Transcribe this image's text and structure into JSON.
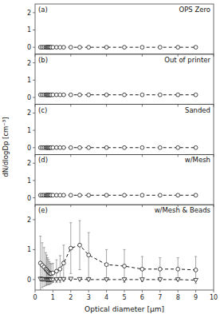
{
  "chart_data": [
    {
      "type": "line",
      "title": "OPS Zero",
      "annotations": [
        "(a)"
      ],
      "x": [
        0.3,
        0.4,
        0.5,
        0.6,
        0.65,
        0.7,
        0.75,
        0.8,
        0.85,
        0.9,
        1.0,
        1.2,
        1.4,
        1.6,
        2.0,
        2.5,
        3.0,
        4.0,
        5.0,
        6.0,
        7.0,
        8.0,
        9.0
      ],
      "series": [
        {
          "color": "black",
          "marker": "circle",
          "line_style": "dashed",
          "values": [
            0,
            0,
            0,
            0,
            0,
            0,
            0,
            0,
            0,
            0,
            0,
            0,
            0,
            0,
            0,
            0,
            0,
            0,
            0,
            0,
            0,
            0,
            0
          ]
        }
      ],
      "xlim": [
        0,
        10
      ],
      "xticks": [
        0,
        2,
        4,
        6,
        8,
        10
      ],
      "ylim": [
        -0.4,
        2.5
      ],
      "yticks": [
        0,
        1,
        2
      ],
      "tick_labels": "y",
      "grid": false
    },
    {
      "type": "line",
      "title": "Out of printer",
      "annotations": [
        "(b)"
      ],
      "x": [
        0.3,
        0.4,
        0.5,
        0.6,
        0.65,
        0.7,
        0.75,
        0.8,
        0.85,
        0.9,
        1.0,
        1.2,
        1.4,
        1.6,
        2.0,
        2.5,
        3.0,
        4.0,
        5.0,
        6.0,
        7.0,
        8.0,
        9.0
      ],
      "series": [
        {
          "color": "black",
          "marker": "circle",
          "line_style": "dashed",
          "values": [
            0.15,
            0.15,
            0.15,
            0.15,
            0.15,
            0.15,
            0.15,
            0.15,
            0.15,
            0.15,
            0.15,
            0.15,
            0.15,
            0.15,
            0.15,
            0.15,
            0.15,
            0.15,
            0.15,
            0.15,
            0.15,
            0.15,
            0.15
          ]
        }
      ],
      "xlim": [
        0,
        10
      ],
      "xticks": [
        0,
        2,
        4,
        6,
        8,
        10
      ],
      "ylim": [
        -0.4,
        2.5
      ],
      "yticks": [
        0,
        1,
        2
      ],
      "tick_labels": "y",
      "grid": false
    },
    {
      "type": "line",
      "title": "Sanded",
      "annotations": [
        "(c)"
      ],
      "y_label": "dN/dlogDp [cm⁻³]",
      "x": [
        0.3,
        0.4,
        0.5,
        0.6,
        0.65,
        0.7,
        0.75,
        0.8,
        0.85,
        0.9,
        1.0,
        1.2,
        1.4,
        1.6,
        2.0,
        2.5,
        3.0,
        4.0,
        5.0,
        6.0,
        7.0,
        8.0,
        9.0
      ],
      "series": [
        {
          "color": "black",
          "marker": "circle",
          "line_style": "dashed",
          "values": [
            0,
            0,
            0,
            0,
            0,
            0,
            0,
            0,
            0,
            0,
            0,
            0,
            0,
            0,
            0,
            0,
            0,
            0,
            0,
            0,
            0,
            0,
            0
          ]
        }
      ],
      "xlim": [
        0,
        10
      ],
      "xticks": [
        0,
        2,
        4,
        6,
        8,
        10
      ],
      "ylim": [
        -0.4,
        2.5
      ],
      "yticks": [
        0,
        1,
        2
      ],
      "tick_labels": "y",
      "grid": false
    },
    {
      "type": "line",
      "title": "w/Mesh",
      "annotations": [
        "(d)"
      ],
      "x": [
        0.3,
        0.4,
        0.5,
        0.6,
        0.65,
        0.7,
        0.75,
        0.8,
        0.85,
        0.9,
        1.0,
        1.2,
        1.4,
        1.6,
        2.0,
        2.5,
        3.0,
        4.0,
        5.0,
        6.0,
        7.0,
        8.0,
        9.0
      ],
      "series": [
        {
          "color": "black",
          "marker": "circle",
          "line_style": "dashed",
          "values": [
            0.15,
            0.15,
            0.15,
            0.15,
            0.15,
            0.15,
            0.15,
            0.15,
            0.15,
            0.15,
            0.15,
            0.15,
            0.15,
            0.15,
            0.15,
            0.15,
            0.15,
            0.15,
            0.15,
            0.15,
            0.15,
            0.15,
            0.15
          ]
        }
      ],
      "xlim": [
        0,
        10
      ],
      "xticks": [
        0,
        2,
        4,
        6,
        8,
        10
      ],
      "ylim": [
        -0.4,
        2.5
      ],
      "yticks": [
        0,
        1,
        2
      ],
      "tick_labels": "y",
      "grid": false
    },
    {
      "type": "line",
      "title": "w/Mesh & Beads",
      "annotations": [
        "(e)"
      ],
      "x_label": "Optical diameter [μm]",
      "x": [
        0.3,
        0.4,
        0.5,
        0.6,
        0.65,
        0.7,
        0.75,
        0.8,
        0.85,
        0.9,
        1.0,
        1.2,
        1.4,
        1.6,
        2.0,
        2.5,
        3.0,
        4.0,
        5.0,
        6.0,
        7.0,
        8.0,
        9.0
      ],
      "series": [
        {
          "color": "black",
          "marker": "circle",
          "line_style": "dashed",
          "values": [
            0.55,
            0.48,
            0.42,
            0.35,
            0.32,
            0.28,
            0.25,
            0.22,
            0.2,
            0.2,
            0.22,
            0.28,
            0.35,
            0.55,
            1.05,
            1.15,
            0.82,
            0.5,
            0.45,
            0.35,
            0.35,
            0.35,
            0.32
          ],
          "errors": [
            0.9,
            0.75,
            0.65,
            0.55,
            0.5,
            0.45,
            0.42,
            0.38,
            0.35,
            0.32,
            0.32,
            0.38,
            0.45,
            0.6,
            0.85,
            0.82,
            0.75,
            0.5,
            0.55,
            0.42,
            0.38,
            0.38,
            0.45
          ]
        },
        {
          "color": "black",
          "marker": "triangle-down",
          "line_style": "dashed",
          "values": [
            0.02,
            0.01,
            0.01,
            0.0,
            0.0,
            0.0,
            -0.01,
            -0.01,
            -0.01,
            -0.01,
            -0.01,
            0.0,
            0.01,
            0.01,
            0.02,
            0.01,
            0.0,
            0.0,
            0.0,
            0.0,
            0.0,
            0.0,
            -0.02
          ],
          "errors": [
            0.06,
            0.05,
            0.04,
            0.04,
            0.03,
            0.03,
            0.03,
            0.03,
            0.03,
            0.03,
            0.03,
            0.03,
            0.03,
            0.03,
            0.04,
            0.04,
            0.03,
            0.03,
            0.03,
            0.03,
            0.03,
            0.03,
            0.03
          ]
        }
      ],
      "xlim": [
        0,
        10
      ],
      "xticks": [
        0,
        1,
        2,
        3,
        4,
        5,
        6,
        7,
        8,
        9,
        10
      ],
      "ylim": [
        -0.35,
        2.5
      ],
      "yticks": [
        0,
        1,
        2
      ],
      "grid": false
    }
  ]
}
